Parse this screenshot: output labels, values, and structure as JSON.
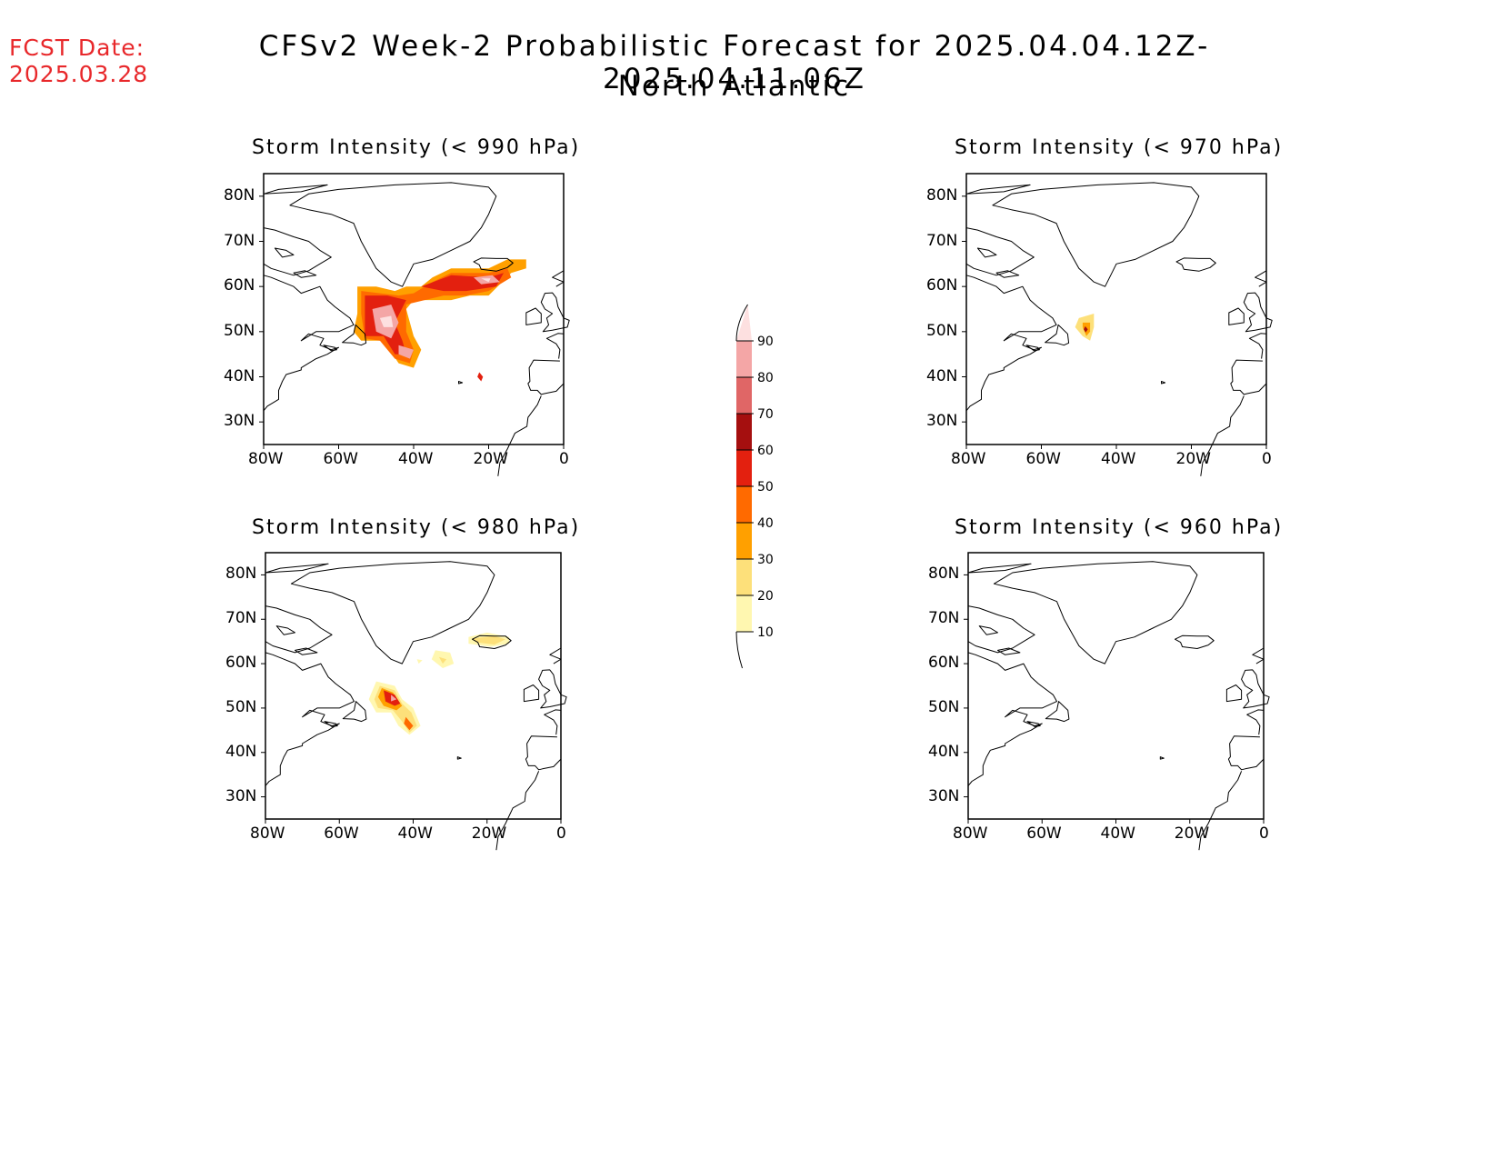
{
  "header": {
    "fcst_label": "FCST Date:",
    "fcst_date": "2025.03.28",
    "title": "CFSv2 Week-2 Probabilistic Forecast for 2025.04.04.12Z-2025.04.11.06Z",
    "subtitle": "North Atlantic"
  },
  "axes": {
    "lat_labels": [
      "80N",
      "70N",
      "60N",
      "50N",
      "40N",
      "30N"
    ],
    "lon_labels": [
      "80W",
      "60W",
      "40W",
      "20W",
      "0"
    ]
  },
  "panels": [
    {
      "title": "Storm Intensity (< 990 hPa)",
      "max_probability": 90
    },
    {
      "title": "Storm Intensity (< 970 hPa)",
      "max_probability": 60
    },
    {
      "title": "Storm Intensity (< 980 hPa)",
      "max_probability": 70
    },
    {
      "title": "Storm Intensity (< 960 hPa)",
      "max_probability": 0
    }
  ],
  "colorbar": {
    "levels": [
      "90",
      "80",
      "70",
      "60",
      "50",
      "40",
      "30",
      "20",
      "10"
    ],
    "colors": [
      "#fde0e0",
      "#f4a6a6",
      "#e06666",
      "#a50f0f",
      "#e3200f",
      "#ff6a00",
      "#ffa000",
      "#fde07a",
      "#fff7b0"
    ]
  }
}
